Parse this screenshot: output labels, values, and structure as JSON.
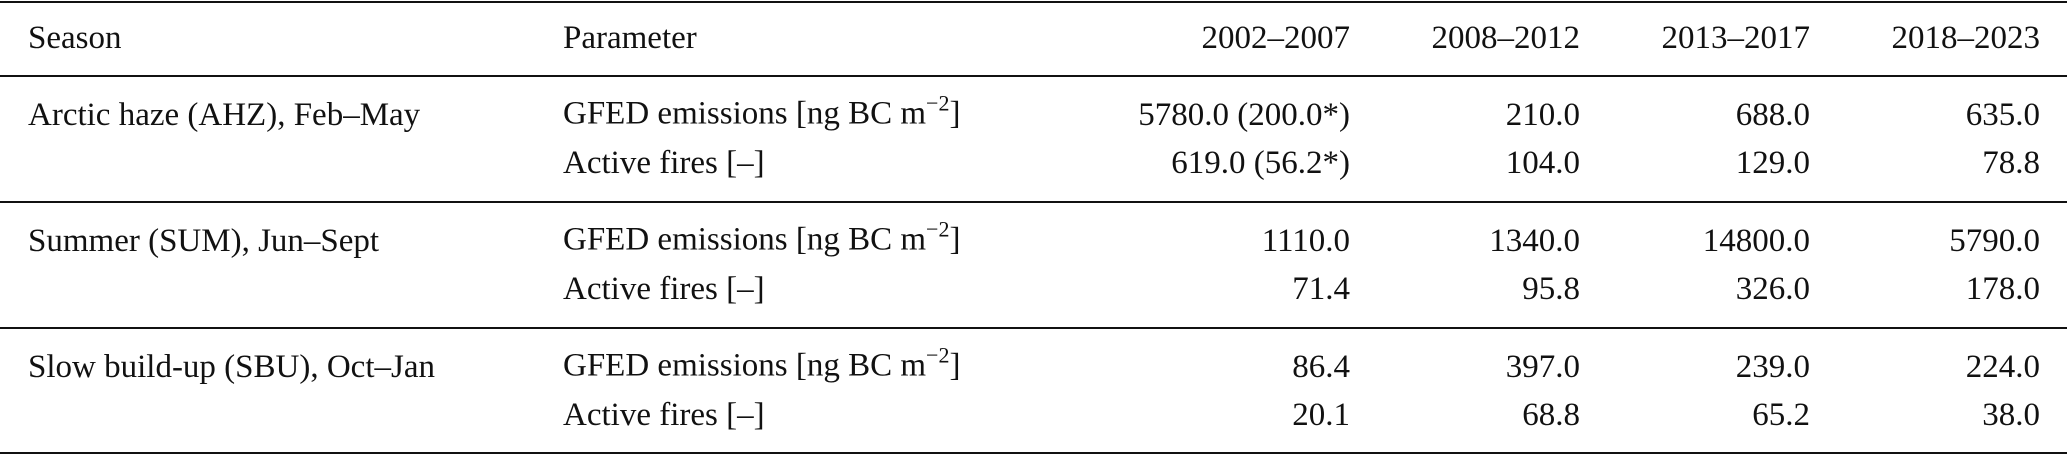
{
  "table": {
    "headers": [
      "Season",
      "Parameter",
      "2002–2007",
      "2008–2012",
      "2013–2017",
      "2018–2023"
    ],
    "groups": [
      {
        "season": "Arctic haze (AHZ), Feb–May",
        "rows": [
          {
            "parameter": "GFED emissions [ng BC m",
            "exponent": "−2",
            "close": "]",
            "values": [
              "5780.0 (200.0*)",
              "210.0",
              "688.0",
              "635.0"
            ]
          },
          {
            "parameter": "Active fires [–]",
            "values": [
              "619.0 (56.2*)",
              "104.0",
              "129.0",
              "78.8"
            ]
          }
        ]
      },
      {
        "season": "Summer (SUM), Jun–Sept",
        "rows": [
          {
            "parameter": "GFED emissions [ng BC m",
            "exponent": "−2",
            "close": "]",
            "values": [
              "1110.0",
              "1340.0",
              "14800.0",
              "5790.0"
            ]
          },
          {
            "parameter": "Active fires [–]",
            "values": [
              "71.4",
              "95.8",
              "326.0",
              "178.0"
            ]
          }
        ]
      },
      {
        "season": "Slow build-up (SBU), Oct–Jan",
        "rows": [
          {
            "parameter": "GFED emissions [ng BC m",
            "exponent": "−2",
            "close": "]",
            "values": [
              "86.4",
              "397.0",
              "239.0",
              "224.0"
            ]
          },
          {
            "parameter": "Active fires [–]",
            "values": [
              "20.1",
              "68.8",
              "65.2",
              "38.0"
            ]
          }
        ]
      }
    ]
  }
}
